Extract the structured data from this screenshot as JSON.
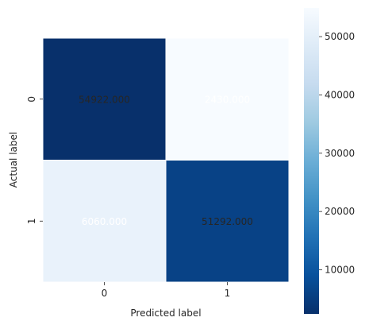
{
  "chart_data": {
    "type": "heatmap",
    "title": "",
    "xlabel": "Predicted label",
    "ylabel": "Actual label",
    "x_categories": [
      "0",
      "1"
    ],
    "y_categories": [
      "0",
      "1"
    ],
    "values": [
      [
        54922,
        2430
      ],
      [
        6060,
        51292
      ]
    ],
    "value_labels": [
      [
        "54922.000",
        "2430.000"
      ],
      [
        "6060.000",
        "51292.000"
      ]
    ],
    "colormap": "Blues",
    "colorbar": {
      "range": [
        2430,
        54922
      ],
      "ticks": [
        10000,
        20000,
        30000,
        40000,
        50000
      ],
      "tick_labels": [
        "10000",
        "20000",
        "30000",
        "40000",
        "50000"
      ]
    },
    "cell_text_colors": [
      [
        "#262626",
        "#ffffff"
      ],
      [
        "#ffffff",
        "#262626"
      ]
    ],
    "grid": false,
    "legend": "colorbar-right"
  }
}
